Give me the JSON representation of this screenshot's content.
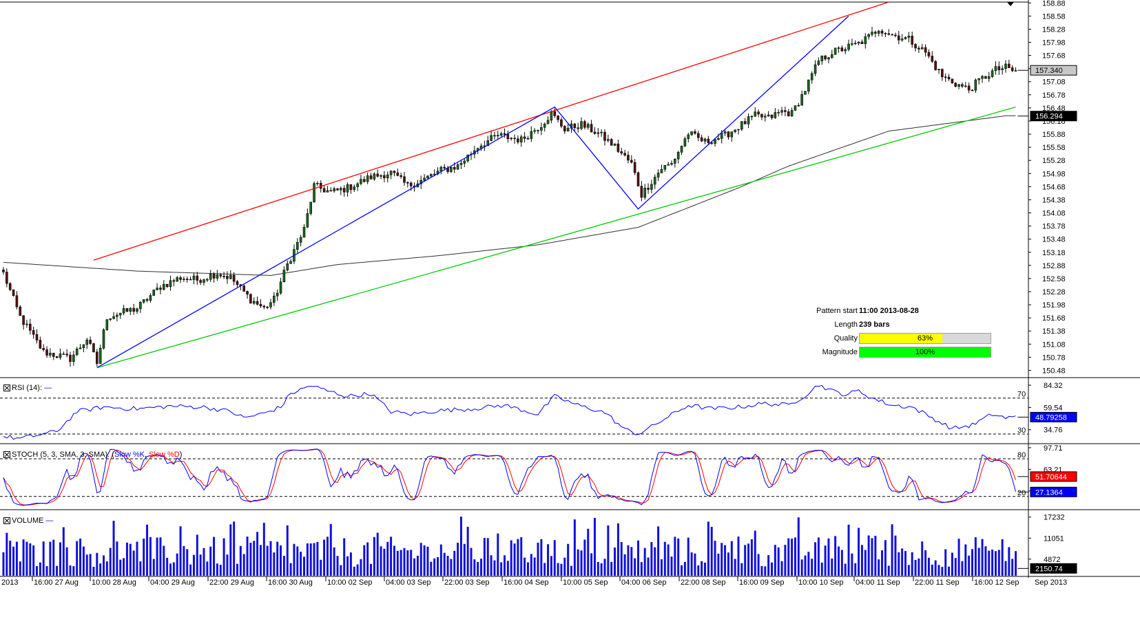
{
  "chart_data": [
    {
      "type": "candlestick",
      "title": "",
      "price_scale": [
        "158.88",
        "158.58",
        "158.28",
        "157.98",
        "157.68",
        "157.38",
        "157.08",
        "156.78",
        "156.48",
        "156.18",
        "155.88",
        "155.58",
        "155.28",
        "154.98",
        "154.68",
        "154.38",
        "154.08",
        "153.78",
        "153.48",
        "153.18",
        "152.88",
        "152.58",
        "152.28",
        "151.98",
        "151.68",
        "151.38",
        "151.08",
        "150.78",
        "150.48"
      ],
      "ylim": [
        150.33,
        158.9
      ],
      "current_price": "157.340",
      "ma_value": "156.294",
      "x_labels": [
        "2013",
        "16:00 27 Aug",
        "10:00 28 Aug",
        "04:00 29 Aug",
        "22:00 29 Aug",
        "16:00 30 Aug",
        "10:00 02 Sep",
        "04:00 03 Sep",
        "22:00 03 Sep",
        "16:00 04 Sep",
        "10:00 05 Sep",
        "04:00 06 Sep",
        "22:00 08 Sep",
        "16:00 09 Sep",
        "10:00 10 Sep",
        "04:00 11 Sep",
        "22:00 11 Sep",
        "16:00 12 Sep",
        "Sep 2013"
      ],
      "close_anchors": [
        [
          0,
          152.7
        ],
        [
          5,
          151.7
        ],
        [
          12,
          150.9
        ],
        [
          20,
          150.75
        ],
        [
          25,
          151.2
        ],
        [
          28,
          150.65
        ],
        [
          31,
          151.7
        ],
        [
          40,
          151.9
        ],
        [
          47,
          152.4
        ],
        [
          53,
          152.6
        ],
        [
          58,
          152.55
        ],
        [
          64,
          152.7
        ],
        [
          68,
          152.6
        ],
        [
          74,
          152.1
        ],
        [
          78,
          151.9
        ],
        [
          81,
          152.1
        ],
        [
          85,
          152.9
        ],
        [
          90,
          153.7
        ],
        [
          93,
          154.7
        ],
        [
          98,
          154.55
        ],
        [
          103,
          154.65
        ],
        [
          110,
          154.9
        ],
        [
          116,
          155.0
        ],
        [
          121,
          154.7
        ],
        [
          126,
          154.85
        ],
        [
          131,
          155.05
        ],
        [
          136,
          155.15
        ],
        [
          142,
          155.6
        ],
        [
          148,
          155.85
        ],
        [
          155,
          155.75
        ],
        [
          161,
          156.1
        ],
        [
          164,
          156.35
        ],
        [
          168,
          156.0
        ],
        [
          173,
          156.1
        ],
        [
          178,
          155.9
        ],
        [
          183,
          155.6
        ],
        [
          188,
          155.2
        ],
        [
          191,
          154.5
        ],
        [
          194,
          154.8
        ],
        [
          197,
          155.1
        ],
        [
          200,
          155.2
        ],
        [
          205,
          155.9
        ],
        [
          210,
          155.7
        ],
        [
          216,
          155.85
        ],
        [
          220,
          156.05
        ],
        [
          225,
          156.3
        ],
        [
          229,
          156.25
        ],
        [
          233,
          156.4
        ],
        [
          236,
          156.35
        ],
        [
          240,
          156.9
        ],
        [
          244,
          157.55
        ],
        [
          248,
          157.75
        ],
        [
          252,
          157.85
        ],
        [
          256,
          157.95
        ],
        [
          259,
          158.1
        ],
        [
          262,
          158.3
        ],
        [
          266,
          158.15
        ],
        [
          271,
          158.05
        ],
        [
          276,
          157.75
        ],
        [
          281,
          157.2
        ],
        [
          286,
          157.0
        ],
        [
          289,
          156.9
        ],
        [
          292,
          157.1
        ],
        [
          297,
          157.35
        ],
        [
          300,
          157.4
        ],
        [
          303,
          157.3
        ]
      ],
      "trend_lines": {
        "upper_red": [
          [
            27,
            153.0
          ],
          [
            265,
            158.9
          ]
        ],
        "lower_green": [
          [
            28,
            150.54
          ],
          [
            303,
            156.5
          ]
        ],
        "pattern_zigzag": [
          [
            28,
            150.54
          ],
          [
            165,
            156.5
          ],
          [
            190,
            154.17
          ],
          [
            253,
            158.58
          ]
        ]
      },
      "moving_average": [
        [
          0,
          152.95
        ],
        [
          40,
          152.75
        ],
        [
          80,
          152.65
        ],
        [
          100,
          152.9
        ],
        [
          130,
          153.1
        ],
        [
          160,
          153.35
        ],
        [
          190,
          153.75
        ],
        [
          205,
          154.2
        ],
        [
          220,
          154.65
        ],
        [
          235,
          155.15
        ],
        [
          250,
          155.55
        ],
        [
          265,
          155.95
        ],
        [
          280,
          156.1
        ],
        [
          300,
          156.3
        ]
      ],
      "pattern_info": {
        "pattern_start_label": "Pattern start",
        "pattern_start_value": "11:00 2013-08-28",
        "length_label": "Length",
        "length_value": "239 bars",
        "quality_label": "Quality",
        "quality_value": "63%",
        "quality_fraction": 0.63,
        "magnitude_label": "Magnitude",
        "magnitude_value": "100%",
        "magnitude_fraction": 1.0
      }
    },
    {
      "type": "line",
      "name": "RSI (14)",
      "scale_labels": [
        "84.32",
        "59.54",
        "34.76"
      ],
      "ylim": [
        20,
        92
      ],
      "levels": [
        "70",
        "30"
      ],
      "current_value": "48.79258",
      "anchors": [
        [
          0,
          27
        ],
        [
          5,
          25
        ],
        [
          12,
          30
        ],
        [
          16,
          33
        ],
        [
          22,
          55
        ],
        [
          30,
          60
        ],
        [
          40,
          58
        ],
        [
          50,
          61
        ],
        [
          60,
          60
        ],
        [
          68,
          55
        ],
        [
          72,
          48
        ],
        [
          78,
          53
        ],
        [
          83,
          60
        ],
        [
          86,
          75
        ],
        [
          92,
          84
        ],
        [
          97,
          78
        ],
        [
          103,
          72
        ],
        [
          110,
          75
        ],
        [
          116,
          55
        ],
        [
          122,
          52
        ],
        [
          130,
          56
        ],
        [
          140,
          58
        ],
        [
          150,
          62
        ],
        [
          160,
          52
        ],
        [
          165,
          72
        ],
        [
          172,
          62
        ],
        [
          180,
          54
        ],
        [
          186,
          35
        ],
        [
          190,
          30
        ],
        [
          194,
          38
        ],
        [
          198,
          47
        ],
        [
          205,
          62
        ],
        [
          212,
          58
        ],
        [
          220,
          60
        ],
        [
          228,
          64
        ],
        [
          235,
          62
        ],
        [
          240,
          73
        ],
        [
          244,
          85
        ],
        [
          248,
          78
        ],
        [
          252,
          74
        ],
        [
          256,
          78
        ],
        [
          260,
          70
        ],
        [
          266,
          62
        ],
        [
          272,
          60
        ],
        [
          278,
          48
        ],
        [
          284,
          36
        ],
        [
          290,
          40
        ],
        [
          296,
          52
        ],
        [
          300,
          48
        ],
        [
          303,
          48.8
        ]
      ]
    },
    {
      "type": "line",
      "name": "STOCH (5, 3, SMA, 3, SMA)",
      "series": [
        {
          "name": "Slow %K"
        },
        {
          "name": "Slow %D"
        }
      ],
      "scale_labels": [
        "97.71",
        "63.21",
        "28.71"
      ],
      "ylim": [
        0,
        102
      ],
      "levels": [
        "80",
        "20"
      ],
      "k_value": "27.1364",
      "d_value": "51.70644"
    },
    {
      "type": "bar",
      "name": "VOLUME",
      "scale_labels": [
        "17232",
        "11051",
        "4872"
      ],
      "ylim": [
        0,
        19000
      ],
      "current_value": "2150.74"
    }
  ],
  "colors": {
    "bull": "#1a6b1a",
    "bear": "#5a1010",
    "upper_line": "#ff0000",
    "lower_line": "#00cc00",
    "zigzag": "#0000ff",
    "ma": "#303030",
    "rsi": "#0000ff",
    "stoch_k": "#0000ff",
    "stoch_d": "#ff0000",
    "volume": "#1010dd",
    "quality_fill": "#ffff00",
    "magnitude_fill": "#00ff00",
    "tag_gray": "#c8c8c8",
    "tag_dark": "#000000",
    "tag_blue": "#0000ff",
    "tag_red": "#ff0000"
  }
}
